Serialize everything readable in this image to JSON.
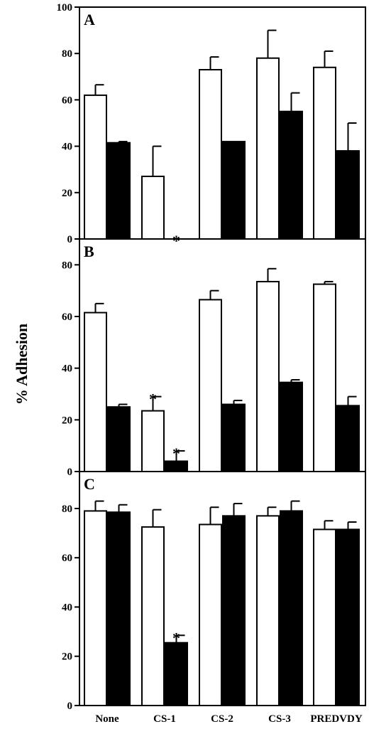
{
  "chart_data": {
    "type": "bar",
    "ylabel": "% Adhesion",
    "categories": [
      "None",
      "CS-1",
      "CS-2",
      "CS-3",
      "PREDVDY"
    ],
    "colors": {
      "open": "#ffffff",
      "filled": "#000000"
    },
    "grid": false,
    "legend": "none",
    "panels": [
      {
        "label": "A",
        "ylim": [
          0,
          100
        ],
        "yticks": [
          "0",
          "20",
          "40",
          "60",
          "80",
          "100"
        ],
        "series": [
          {
            "fill": "open",
            "values": [
              62,
              27,
              73,
              78,
              74
            ],
            "errors": [
              4.5,
              13,
              5.5,
              12,
              7
            ]
          },
          {
            "fill": "filled",
            "values": [
              41.5,
              0,
              42,
              55,
              38
            ],
            "errors": [
              0.5,
              0,
              0,
              8,
              12
            ]
          }
        ],
        "significance": [
          {
            "category": "CS-1",
            "series": 1,
            "mark": "*"
          }
        ]
      },
      {
        "label": "B",
        "ylim": [
          0,
          90
        ],
        "yticks": [
          "0",
          "20",
          "40",
          "60",
          "80"
        ],
        "series": [
          {
            "fill": "open",
            "values": [
              61.5,
              23.5,
              66.5,
              73.5,
              72.5
            ],
            "errors": [
              3.5,
              5.5,
              3.5,
              5,
              1
            ]
          },
          {
            "fill": "filled",
            "values": [
              25,
              4,
              26,
              34.5,
              25.5
            ],
            "errors": [
              1,
              4,
              1.5,
              1,
              3.5
            ]
          }
        ],
        "significance": [
          {
            "category": "CS-1",
            "series": 0,
            "mark": "*"
          },
          {
            "category": "CS-1",
            "series": 1,
            "mark": "*"
          }
        ]
      },
      {
        "label": "C",
        "ylim": [
          0,
          95
        ],
        "yticks": [
          "0",
          "20",
          "40",
          "60",
          "80"
        ],
        "series": [
          {
            "fill": "open",
            "values": [
              79,
              72.5,
              73.5,
              77,
              71.5
            ],
            "errors": [
              4,
              7,
              7,
              3.5,
              3.5
            ]
          },
          {
            "fill": "filled",
            "values": [
              78.5,
              25.5,
              77,
              79,
              71.5
            ],
            "errors": [
              3,
              3,
              5,
              4,
              3
            ]
          }
        ],
        "significance": [
          {
            "category": "CS-1",
            "series": 1,
            "mark": "*"
          }
        ]
      }
    ]
  }
}
